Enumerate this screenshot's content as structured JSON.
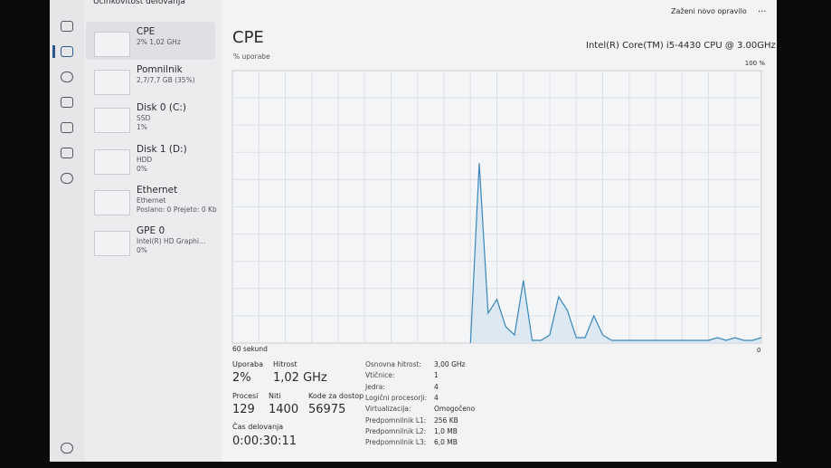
{
  "header": {
    "title": "Učinkovitost delovanja",
    "new_task": "Zaženi novo opravilo",
    "more": "..."
  },
  "sidebar": [
    {
      "name": "CPE",
      "lines": [
        "2% 1,02 GHz"
      ]
    },
    {
      "name": "Pomnilnik",
      "lines": [
        "2,7/7,7 GB (35%)"
      ]
    },
    {
      "name": "Disk 0 (C:)",
      "lines": [
        "SSD",
        "1%"
      ]
    },
    {
      "name": "Disk 1 (D:)",
      "lines": [
        "HDD",
        "0%"
      ]
    },
    {
      "name": "Ethernet",
      "lines": [
        "Ethernet",
        "Poslano: 0 Prejeto: 0 Kb"
      ]
    },
    {
      "name": "GPE 0",
      "lines": [
        "Intel(R) HD Graphi...",
        "0%"
      ]
    }
  ],
  "main": {
    "title": "CPE",
    "subtitle": "% uporabe",
    "processor": "Intel(R) Core(TM) i5-4430 CPU @ 3.00GHz"
  },
  "cpu_graph": {
    "top_label": "100 %",
    "bottom_label": "0",
    "x_label": "60 sekund",
    "ylim": [
      0,
      100
    ],
    "xlim": [
      0,
      60
    ],
    "values": [
      null,
      null,
      null,
      null,
      null,
      null,
      null,
      null,
      null,
      null,
      null,
      null,
      null,
      null,
      null,
      null,
      null,
      null,
      null,
      null,
      null,
      null,
      null,
      null,
      null,
      null,
      null,
      0,
      66,
      11,
      16,
      6,
      3,
      23,
      1,
      1,
      3,
      17,
      12,
      2,
      2,
      10,
      3,
      1,
      1,
      1,
      1,
      1,
      1,
      1,
      1,
      1,
      1,
      1,
      1,
      2,
      1,
      2,
      1,
      1,
      2
    ]
  },
  "stats": {
    "usage_label": "Uporaba",
    "usage": "2%",
    "speed_label": "Hitrost",
    "speed": "1,02 GHz",
    "processes_label": "Procesi",
    "processes": "129",
    "threads_label": "Niti",
    "threads": "1400",
    "handles_label": "Kode za dostop",
    "handles": "56975",
    "uptime_label": "Čas delovanja",
    "uptime": "0:00:30:11"
  },
  "details": [
    [
      "Osnovna hitrost:",
      "3,00 GHz"
    ],
    [
      "Vtičnice:",
      "1"
    ],
    [
      "Jedra:",
      "4"
    ],
    [
      "Logični procesorji:",
      "4"
    ],
    [
      "Virtualizacija:",
      "Omogočeno"
    ],
    [
      "Predpomnilnik L1:",
      "256 KB"
    ],
    [
      "Predpomnilnik L2:",
      "1,0 MB"
    ],
    [
      "Predpomnilnik L3:",
      "6,0 MB"
    ]
  ]
}
